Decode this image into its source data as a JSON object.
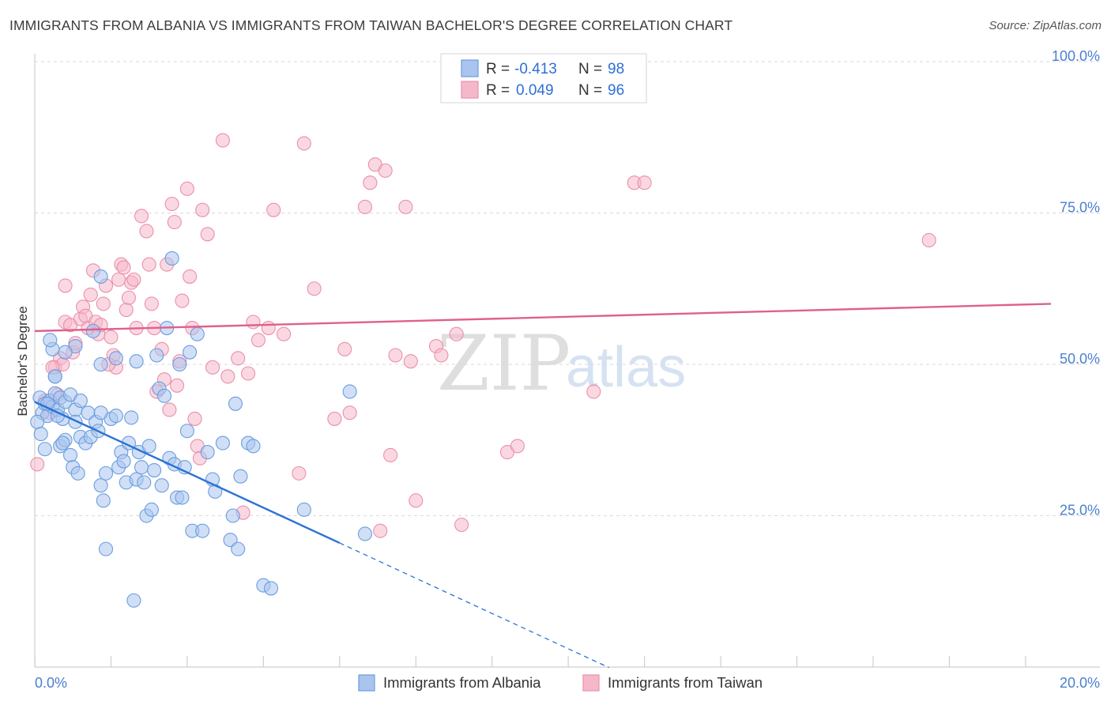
{
  "header": {
    "title": "IMMIGRANTS FROM ALBANIA VS IMMIGRANTS FROM TAIWAN BACHELOR'S DEGREE CORRELATION CHART",
    "source": "Source: ZipAtlas.com"
  },
  "watermark": {
    "zip": "ZIP",
    "atlas": "atlas"
  },
  "legend": {
    "r_label": "R =",
    "n_label": "N =",
    "albania": {
      "r": "-0.413",
      "n": "98"
    },
    "taiwan": {
      "r": "0.049",
      "n": "96"
    }
  },
  "colors": {
    "albania_fill": "#a9c5ee",
    "albania_stroke": "#6b9de0",
    "albania_line": "#2a72d4",
    "taiwan_fill": "#f5b8ca",
    "taiwan_stroke": "#eb8fab",
    "taiwan_line": "#e0608b",
    "tick_label": "#4a7fd0",
    "grid": "#d9d9d9"
  },
  "chart_data": {
    "type": "scatter",
    "title": "IMMIGRANTS FROM ALBANIA VS IMMIGRANTS FROM TAIWAN BACHELOR'S DEGREE CORRELATION CHART",
    "xlabel": "",
    "ylabel": "Bachelor's Degree",
    "xlim": [
      0,
      20
    ],
    "ylim": [
      0,
      100
    ],
    "x_tick_labels": [
      "0.0%",
      "20.0%"
    ],
    "y_ticks": [
      25,
      50,
      75,
      100
    ],
    "y_tick_labels": [
      "25.0%",
      "50.0%",
      "75.0%",
      "100.0%"
    ],
    "grid": "horizontal dashed",
    "legend_placement": "top-center",
    "series": [
      {
        "name": "Immigrants from Albania",
        "r": -0.413,
        "n": 98,
        "trend": {
          "x0": 0.0,
          "y0": 43.8,
          "x1": 6.0,
          "y1": 20.5,
          "dashed_to_x": 11.3
        },
        "points": [
          [
            0.1,
            44.5
          ],
          [
            0.15,
            42
          ],
          [
            0.2,
            43.5
          ],
          [
            0.25,
            41.5
          ],
          [
            0.3,
            44
          ],
          [
            0.35,
            43
          ],
          [
            0.05,
            40.5
          ],
          [
            0.12,
            38.5
          ],
          [
            0.4,
            45.2
          ],
          [
            0.45,
            42.5
          ],
          [
            0.5,
            44.5
          ],
          [
            0.55,
            41
          ],
          [
            0.6,
            43.8
          ],
          [
            0.7,
            45
          ],
          [
            0.8,
            42.5
          ],
          [
            0.9,
            44
          ],
          [
            0.35,
            52.5
          ],
          [
            0.8,
            53
          ],
          [
            0.4,
            48
          ],
          [
            0.3,
            54
          ],
          [
            0.5,
            36.5
          ],
          [
            0.6,
            37.5
          ],
          [
            0.7,
            35
          ],
          [
            0.8,
            40.5
          ],
          [
            0.9,
            38
          ],
          [
            0.75,
            33
          ],
          [
            0.85,
            32
          ],
          [
            1.0,
            37
          ],
          [
            1.1,
            38
          ],
          [
            1.05,
            42
          ],
          [
            1.2,
            40.5
          ],
          [
            1.25,
            39
          ],
          [
            1.3,
            30
          ],
          [
            1.35,
            27.5
          ],
          [
            1.4,
            32
          ],
          [
            1.5,
            41
          ],
          [
            1.6,
            41.5
          ],
          [
            1.65,
            33
          ],
          [
            1.7,
            35.5
          ],
          [
            1.75,
            34
          ],
          [
            1.8,
            30.5
          ],
          [
            1.85,
            37
          ],
          [
            1.9,
            41.2
          ],
          [
            2.0,
            31
          ],
          [
            2.05,
            35.5
          ],
          [
            2.1,
            33
          ],
          [
            2.15,
            30.5
          ],
          [
            2.2,
            25
          ],
          [
            2.25,
            36.5
          ],
          [
            2.3,
            26
          ],
          [
            2.35,
            32.5
          ],
          [
            2.4,
            51.5
          ],
          [
            2.45,
            46
          ],
          [
            2.5,
            30
          ],
          [
            2.55,
            44.8
          ],
          [
            2.6,
            56
          ],
          [
            2.65,
            34.5
          ],
          [
            2.7,
            67.5
          ],
          [
            2.75,
            33.5
          ],
          [
            2.8,
            28
          ],
          [
            2.85,
            50
          ],
          [
            2.9,
            28
          ],
          [
            2.95,
            33
          ],
          [
            3.0,
            39
          ],
          [
            3.05,
            52
          ],
          [
            3.1,
            22.5
          ],
          [
            3.2,
            55
          ],
          [
            3.3,
            22.5
          ],
          [
            3.4,
            35.5
          ],
          [
            3.5,
            31
          ],
          [
            3.55,
            29
          ],
          [
            3.7,
            37
          ],
          [
            3.85,
            21
          ],
          [
            3.9,
            25
          ],
          [
            3.95,
            43.5
          ],
          [
            4.0,
            19.5
          ],
          [
            4.05,
            31.5
          ],
          [
            4.2,
            37
          ],
          [
            4.3,
            36.5
          ],
          [
            4.5,
            13.5
          ],
          [
            4.65,
            13
          ],
          [
            1.15,
            55.5
          ],
          [
            1.4,
            19.5
          ],
          [
            1.95,
            11
          ],
          [
            2.0,
            50.5
          ],
          [
            1.3,
            50
          ],
          [
            1.3,
            42
          ],
          [
            5.3,
            26
          ],
          [
            6.2,
            45.5
          ],
          [
            6.5,
            22
          ],
          [
            1.3,
            64.5
          ],
          [
            1.6,
            51
          ],
          [
            0.25,
            43.5
          ],
          [
            0.4,
            48
          ],
          [
            0.6,
            52
          ],
          [
            0.45,
            41.5
          ],
          [
            0.55,
            37
          ],
          [
            0.2,
            36
          ]
        ]
      },
      {
        "name": "Immigrants from Taiwan",
        "r": 0.049,
        "n": 96,
        "trend": {
          "x0": 0.0,
          "y0": 55.5,
          "x1": 20.0,
          "y1": 60.0
        },
        "points": [
          [
            0.05,
            33.5
          ],
          [
            0.2,
            44
          ],
          [
            0.3,
            42
          ],
          [
            0.4,
            49.5
          ],
          [
            0.5,
            51
          ],
          [
            0.55,
            50
          ],
          [
            0.6,
            57
          ],
          [
            0.7,
            56.5
          ],
          [
            0.75,
            52
          ],
          [
            0.8,
            53.5
          ],
          [
            0.9,
            57.5
          ],
          [
            0.95,
            59.5
          ],
          [
            1.0,
            58
          ],
          [
            1.05,
            56
          ],
          [
            1.1,
            61.5
          ],
          [
            1.15,
            65.5
          ],
          [
            1.2,
            57
          ],
          [
            1.25,
            55
          ],
          [
            1.3,
            56.5
          ],
          [
            1.35,
            60
          ],
          [
            1.4,
            63
          ],
          [
            1.5,
            54.5
          ],
          [
            1.55,
            51.5
          ],
          [
            1.6,
            49.5
          ],
          [
            1.65,
            64
          ],
          [
            1.7,
            66.5
          ],
          [
            1.75,
            66
          ],
          [
            1.8,
            59
          ],
          [
            1.85,
            61
          ],
          [
            1.9,
            63.5
          ],
          [
            1.95,
            64
          ],
          [
            2.0,
            56
          ],
          [
            2.1,
            74.5
          ],
          [
            2.2,
            72
          ],
          [
            2.25,
            66.5
          ],
          [
            2.3,
            60
          ],
          [
            2.35,
            56
          ],
          [
            2.4,
            45.5
          ],
          [
            2.5,
            52.5
          ],
          [
            2.6,
            66.5
          ],
          [
            2.65,
            42.5
          ],
          [
            2.7,
            76.5
          ],
          [
            2.75,
            73.5
          ],
          [
            2.8,
            46.5
          ],
          [
            2.85,
            50.5
          ],
          [
            2.9,
            60.5
          ],
          [
            3.0,
            79
          ],
          [
            3.05,
            64.5
          ],
          [
            3.1,
            56
          ],
          [
            3.15,
            41
          ],
          [
            3.2,
            36.5
          ],
          [
            3.3,
            75.5
          ],
          [
            3.4,
            71.5
          ],
          [
            3.5,
            49.5
          ],
          [
            3.7,
            87
          ],
          [
            3.8,
            48
          ],
          [
            4.0,
            51
          ],
          [
            4.1,
            25.5
          ],
          [
            4.2,
            48.5
          ],
          [
            4.3,
            57
          ],
          [
            4.4,
            54
          ],
          [
            4.6,
            56
          ],
          [
            4.7,
            75.5
          ],
          [
            4.9,
            55
          ],
          [
            5.3,
            86.5
          ],
          [
            5.5,
            62.5
          ],
          [
            5.9,
            41
          ],
          [
            6.1,
            52.5
          ],
          [
            6.2,
            42
          ],
          [
            6.5,
            76
          ],
          [
            6.6,
            80
          ],
          [
            6.7,
            83
          ],
          [
            6.8,
            22.5
          ],
          [
            6.9,
            82
          ],
          [
            7.0,
            35
          ],
          [
            7.1,
            51.5
          ],
          [
            7.3,
            76
          ],
          [
            7.4,
            50.5
          ],
          [
            7.5,
            27.5
          ],
          [
            7.9,
            53
          ],
          [
            8.0,
            51.5
          ],
          [
            8.3,
            55
          ],
          [
            8.4,
            23.5
          ],
          [
            9.3,
            35.5
          ],
          [
            9.5,
            36.5
          ],
          [
            11.0,
            45.5
          ],
          [
            11.8,
            80
          ],
          [
            12.0,
            80
          ],
          [
            17.6,
            70.5
          ],
          [
            0.6,
            63
          ],
          [
            0.45,
            45
          ],
          [
            0.35,
            49.5
          ],
          [
            1.45,
            50
          ],
          [
            2.55,
            47.5
          ],
          [
            3.25,
            34.5
          ],
          [
            5.2,
            32
          ]
        ]
      }
    ]
  },
  "bottom_legend": {
    "albania_label": "Immigrants from Albania",
    "taiwan_label": "Immigrants from Taiwan"
  }
}
